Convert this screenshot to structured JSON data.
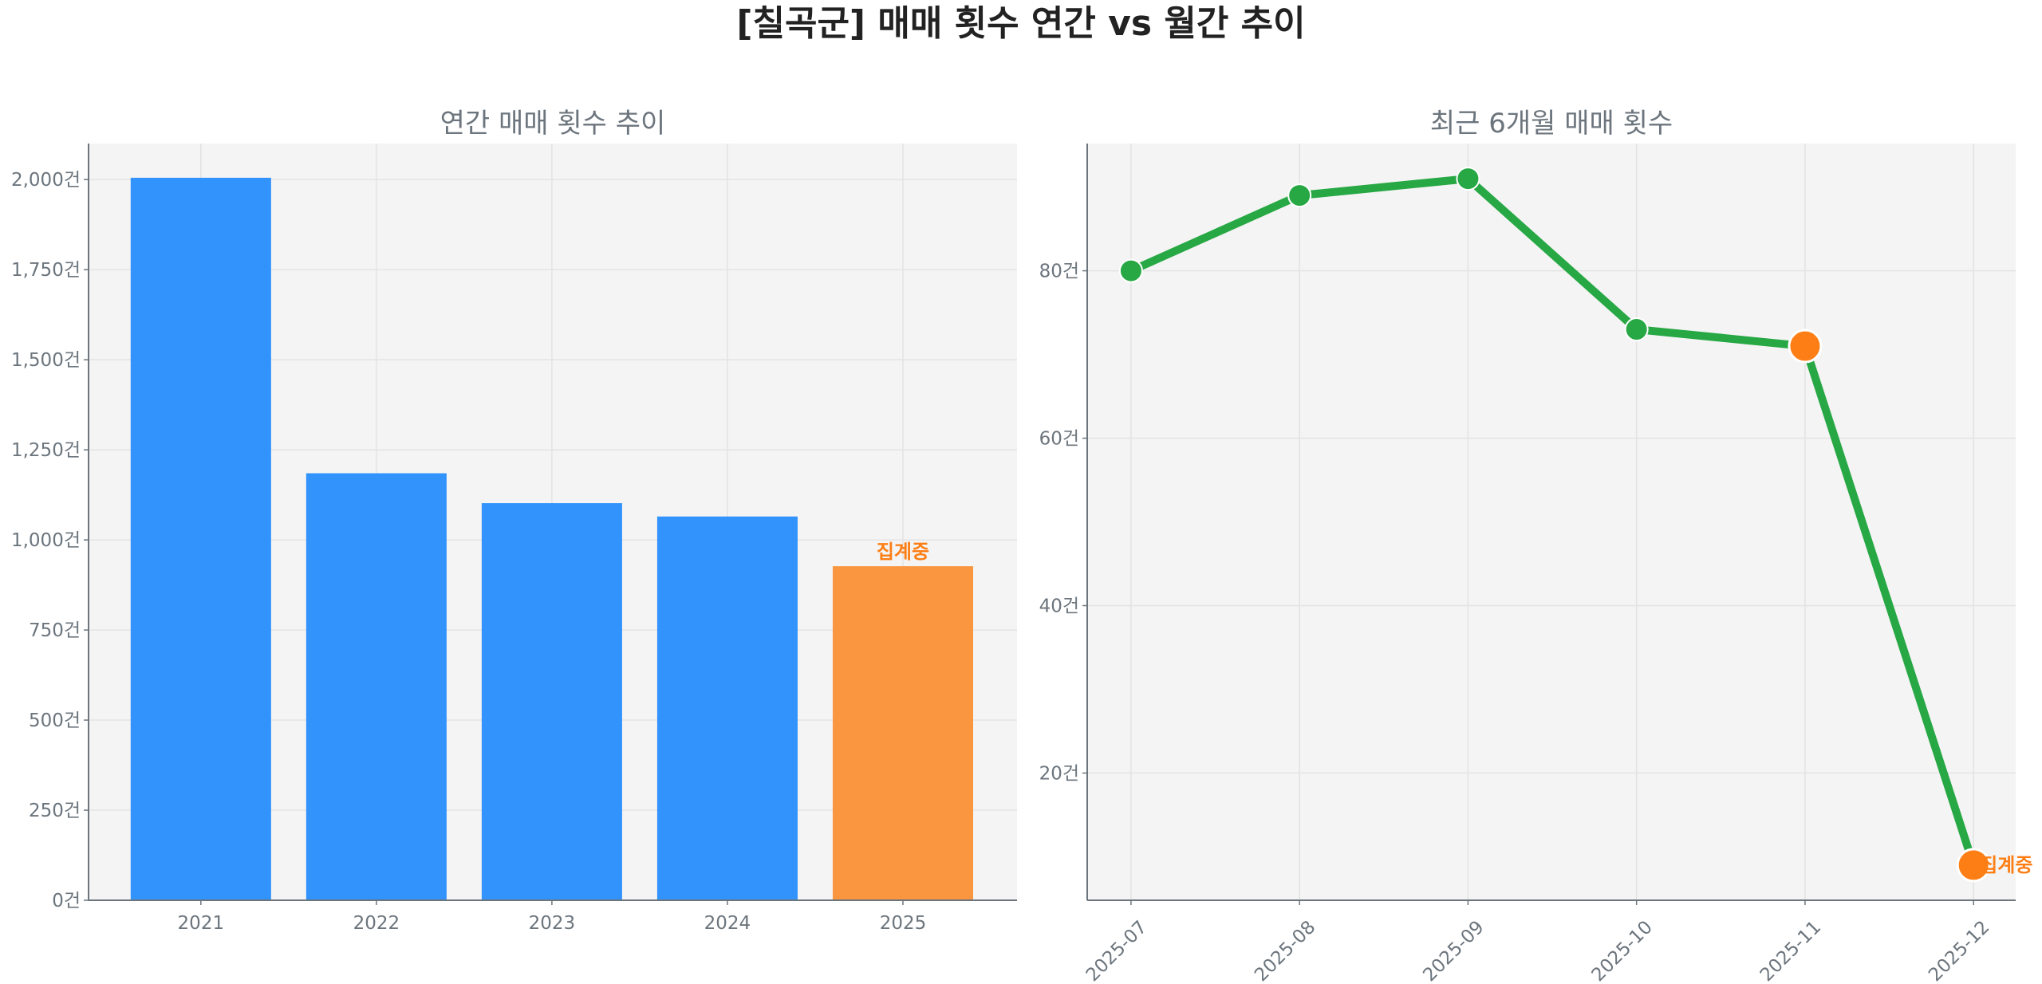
{
  "title": "[칠곡군] 매매 횟수 연간 vs 월간 추이",
  "colors": {
    "bar": "#3193fb",
    "bar_current": "#f9963f",
    "line": "#27a844",
    "marker_highlight": "#fd7e14",
    "annotation": "#fd7e14",
    "plot_bg": "#f4f4f4"
  },
  "chart_data": [
    {
      "type": "bar",
      "title": "연간 매매 횟수 추이",
      "categories": [
        "2021",
        "2022",
        "2023",
        "2024",
        "2025"
      ],
      "values": [
        2005,
        1185,
        1102,
        1065,
        927
      ],
      "ylim": [
        0,
        2100
      ],
      "yticks": [
        0,
        250,
        500,
        750,
        1000,
        1250,
        1500,
        1750,
        2000
      ],
      "ytick_labels": [
        "0건",
        "250건",
        "500건",
        "750건",
        "1,000건",
        "1,250건",
        "1,500건",
        "1,750건",
        "2,000건"
      ],
      "highlight_index": 4,
      "annotation": "집계중",
      "grid": true
    },
    {
      "type": "line",
      "title": "최근 6개월 매매 횟수",
      "categories": [
        "2025-07",
        "2025-08",
        "2025-09",
        "2025-10",
        "2025-11",
        "2025-12"
      ],
      "values": [
        80,
        89,
        91,
        73,
        71,
        9
      ],
      "ylim": [
        4.8,
        95.2
      ],
      "yticks": [
        20,
        40,
        60,
        80
      ],
      "ytick_labels": [
        "20건",
        "40건",
        "60건",
        "80건"
      ],
      "highlight_indices": [
        4,
        5
      ],
      "annotation": "집계중",
      "grid": true
    }
  ]
}
